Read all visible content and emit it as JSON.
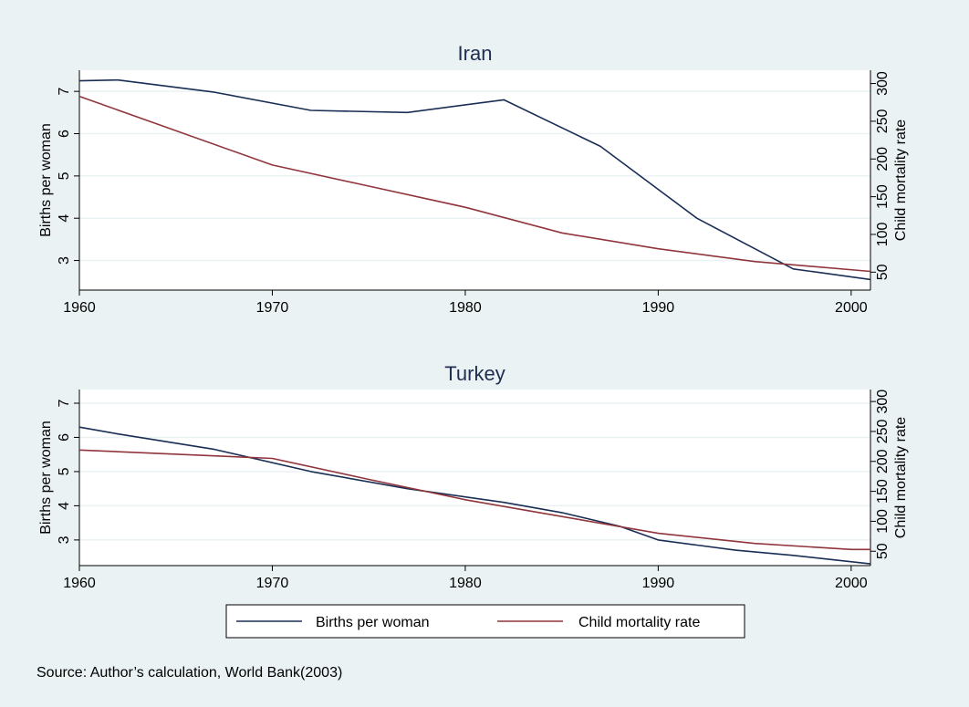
{
  "source_note": "Source: Author’s calculation, World Bank(2003)",
  "legend": {
    "placement": "bottom-center",
    "entries": [
      "Births per woman",
      "Child mortality rate"
    ]
  },
  "colors": {
    "background": "#EAF2F3",
    "plot_area": "#FFFFFF",
    "grid": "#EAF2F3",
    "births": "#1A2E55",
    "mortality": "#90353B"
  },
  "chart_data": [
    {
      "type": "line",
      "title": "Iran",
      "xlabel": "",
      "ylabel": "Births per woman",
      "y2label": "Child mortality rate",
      "xlim": [
        1960,
        2001
      ],
      "ylim": [
        2.3,
        7.5
      ],
      "y2lim": [
        26.2,
        317.6
      ],
      "xticks": [
        1960,
        1970,
        1980,
        1990,
        2000
      ],
      "yticks": [
        3,
        4,
        5,
        6,
        7
      ],
      "y2ticks": [
        50,
        100,
        150,
        200,
        250,
        300
      ],
      "grid": true,
      "series": [
        {
          "name": "Births per woman",
          "axis": "left",
          "x": [
            1960,
            1962,
            1967,
            1972,
            1977,
            1982,
            1987,
            1992,
            1997,
            2001
          ],
          "y": [
            7.25,
            7.27,
            6.98,
            6.55,
            6.5,
            6.8,
            5.7,
            4.0,
            2.8,
            2.55
          ]
        },
        {
          "name": "Child mortality rate",
          "axis": "right",
          "x": [
            1960,
            1970,
            1975,
            1980,
            1985,
            1990,
            1995,
            2001
          ],
          "y": [
            283,
            192,
            164,
            136,
            102,
            81,
            64,
            51
          ]
        }
      ]
    },
    {
      "type": "line",
      "title": "Turkey",
      "xlabel": "",
      "ylabel": "Births per woman",
      "y2label": "Child mortality rate",
      "xlim": [
        1960,
        2001
      ],
      "ylim": [
        2.25,
        7.4
      ],
      "y2lim": [
        26,
        320
      ],
      "xticks": [
        1960,
        1970,
        1980,
        1990,
        2000
      ],
      "yticks": [
        3,
        4,
        5,
        6,
        7
      ],
      "y2ticks": [
        50,
        100,
        150,
        200,
        250,
        300
      ],
      "grid": true,
      "series": [
        {
          "name": "Births per woman",
          "axis": "left",
          "x": [
            1960,
            1962,
            1967,
            1972,
            1977,
            1982,
            1985,
            1988,
            1990,
            1992,
            1994,
            1997,
            2001
          ],
          "y": [
            6.3,
            6.1,
            5.65,
            5.0,
            4.5,
            4.1,
            3.8,
            3.4,
            3.0,
            2.85,
            2.7,
            2.55,
            2.3
          ]
        },
        {
          "name": "Child mortality rate",
          "axis": "right",
          "x": [
            1960,
            1970,
            1975,
            1980,
            1985,
            1990,
            1995,
            2000,
            2001
          ],
          "y": [
            219,
            205,
            170,
            136,
            108,
            80,
            63,
            53,
            53
          ]
        }
      ]
    }
  ]
}
